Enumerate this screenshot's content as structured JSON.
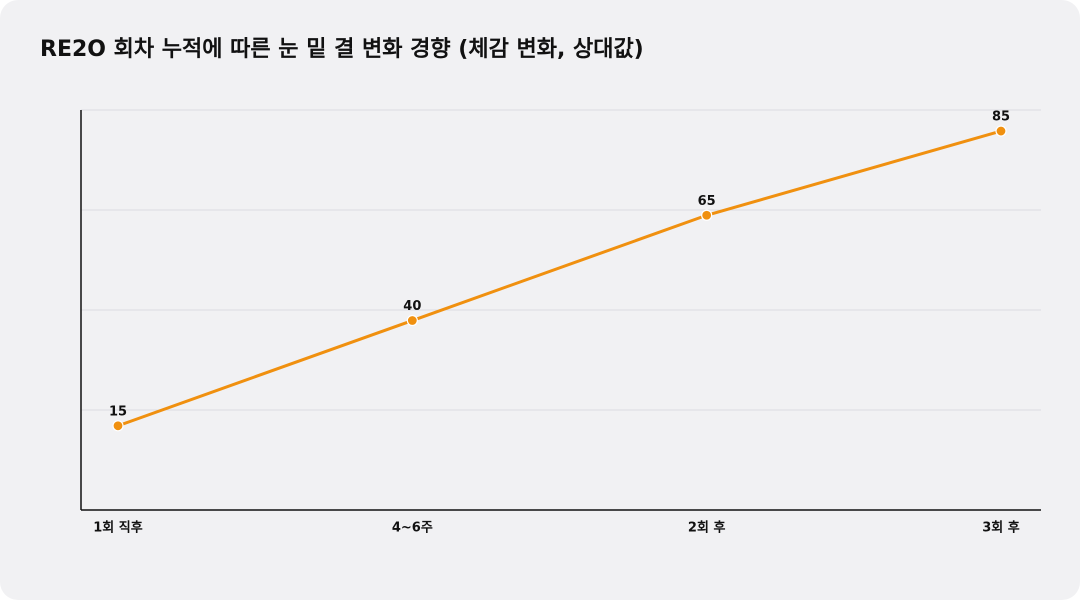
{
  "chart_data": {
    "type": "line",
    "title": "RE2O 회차 누적에 따른 눈 밑 결 변화 경향 (체감 변화, 상대값)",
    "categories": [
      "1회 직후",
      "4~6주",
      "2회 후",
      "3회 후"
    ],
    "series": [
      {
        "name": "체감 변화",
        "color": "#f0900f",
        "values": [
          15,
          40,
          65,
          85
        ]
      }
    ],
    "ylim": [
      -5,
      90
    ],
    "ygrid": [
      18.75,
      42.5,
      66.25,
      90
    ],
    "grid": true
  }
}
